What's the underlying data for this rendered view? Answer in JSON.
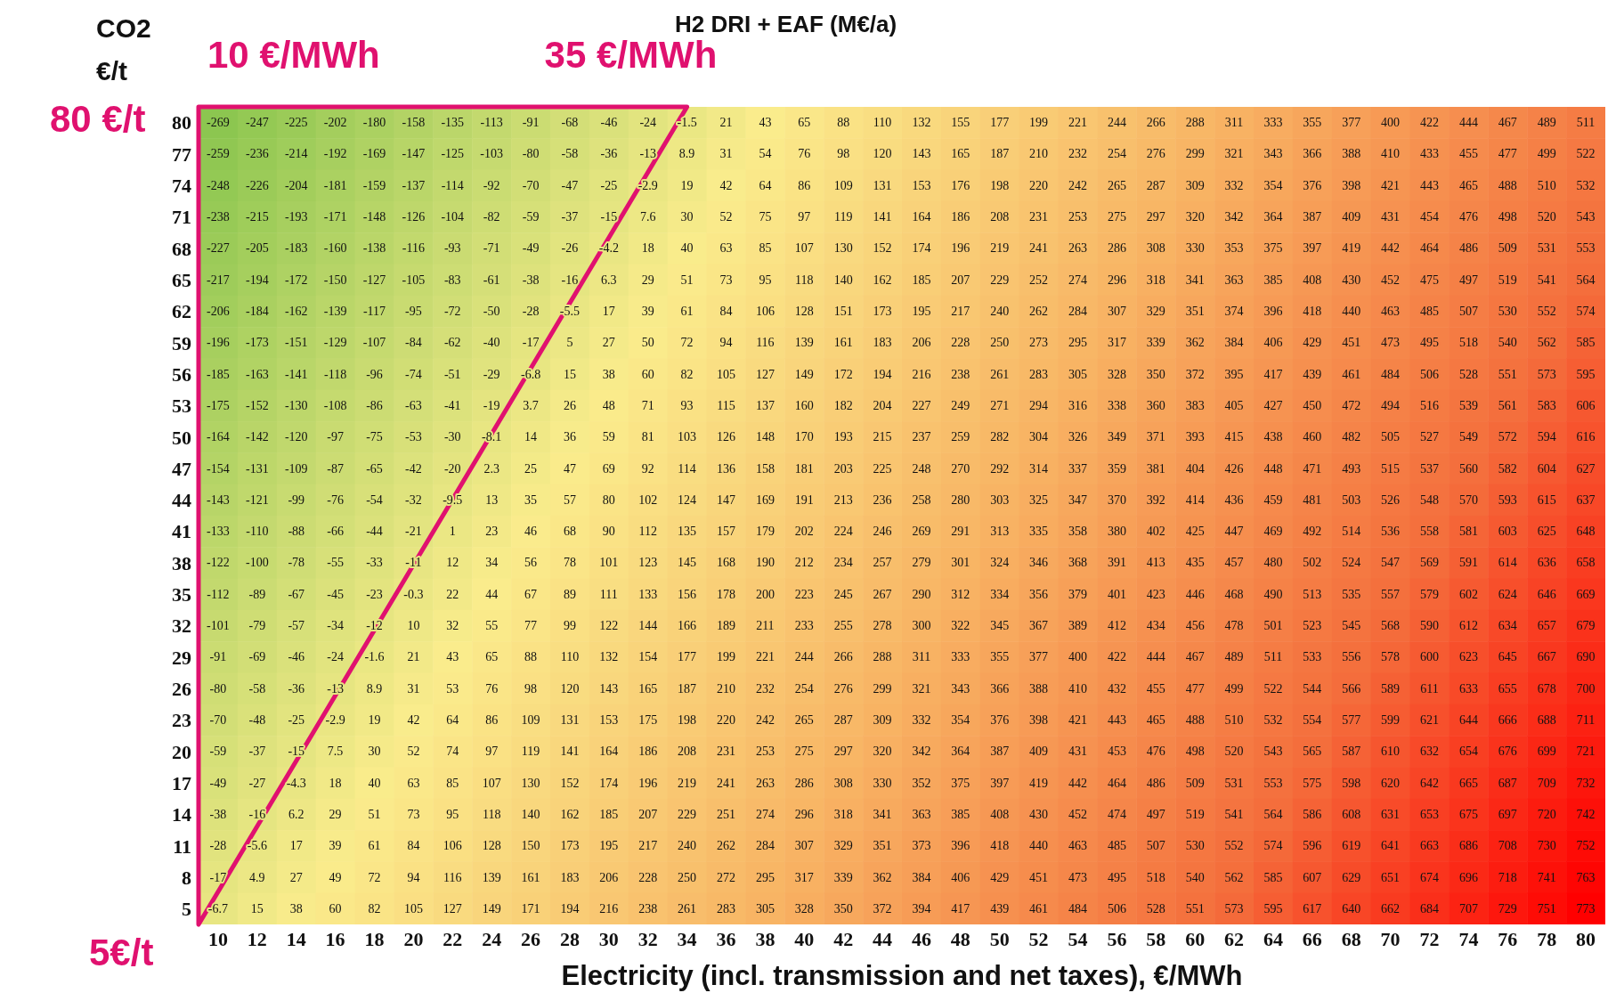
{
  "chart_data": {
    "type": "heatmap",
    "title": "H2 DRI + EAF  (M€/a)",
    "xlabel": "Electricity (incl. transmission and net taxes), €/MWh",
    "ylabel": "CO2 €/t",
    "annotations": [
      "10 €/MWh",
      "35 €/MWh",
      "80 €/t",
      "5€/t"
    ],
    "data_labels": true,
    "categories": [
      "10",
      "12",
      "14",
      "16",
      "18",
      "20",
      "22",
      "24",
      "26",
      "28",
      "30",
      "32",
      "34",
      "36",
      "38",
      "40",
      "42",
      "44",
      "46",
      "48",
      "50",
      "52",
      "54",
      "56",
      "58",
      "60",
      "62",
      "64",
      "66",
      "68",
      "70",
      "72",
      "74",
      "76",
      "78",
      "80"
    ],
    "y_categories": [
      "80",
      "77",
      "74",
      "71",
      "68",
      "65",
      "62",
      "59",
      "56",
      "53",
      "50",
      "47",
      "44",
      "41",
      "38",
      "35",
      "32",
      "29",
      "26",
      "23",
      "20",
      "17",
      "14",
      "11",
      "8",
      "5"
    ],
    "cells": [
      [
        -269,
        -247,
        -225,
        -202,
        -180,
        -158,
        -135,
        -113,
        -91,
        -68,
        -46,
        -24,
        -1.5,
        21,
        43,
        65,
        88,
        110,
        132,
        155,
        177,
        199,
        221,
        244,
        266,
        288,
        311,
        333,
        355,
        377,
        400,
        422,
        444,
        467,
        489,
        511
      ],
      [
        -259,
        -236,
        -214,
        -192,
        -169,
        -147,
        -125,
        -103,
        -80,
        -58,
        -36,
        -13,
        8.9,
        31,
        54,
        76,
        98,
        120,
        143,
        165,
        187,
        210,
        232,
        254,
        276,
        299,
        321,
        343,
        366,
        388,
        410,
        433,
        455,
        477,
        499,
        522
      ],
      [
        -248,
        -226,
        -204,
        -181,
        -159,
        -137,
        -114,
        -92,
        -70,
        -47,
        -25,
        -2.9,
        19,
        42,
        64,
        86,
        109,
        131,
        153,
        176,
        198,
        220,
        242,
        265,
        287,
        309,
        332,
        354,
        376,
        398,
        421,
        443,
        465,
        488,
        510,
        532
      ],
      [
        -238,
        -215,
        -193,
        -171,
        -148,
        -126,
        -104,
        -82,
        -59,
        -37,
        -15,
        7.6,
        30,
        52,
        75,
        97,
        119,
        141,
        164,
        186,
        208,
        231,
        253,
        275,
        297,
        320,
        342,
        364,
        387,
        409,
        431,
        454,
        476,
        498,
        520,
        543
      ],
      [
        -227,
        -205,
        -183,
        -160,
        -138,
        -116,
        -93,
        -71,
        -49,
        -26,
        -4.2,
        18,
        40,
        63,
        85,
        107,
        130,
        152,
        174,
        196,
        219,
        241,
        263,
        286,
        308,
        330,
        353,
        375,
        397,
        419,
        442,
        464,
        486,
        509,
        531,
        553
      ],
      [
        -217,
        -194,
        -172,
        -150,
        -127,
        -105,
        -83,
        -61,
        -38,
        -16,
        6.3,
        29,
        51,
        73,
        95,
        118,
        140,
        162,
        185,
        207,
        229,
        252,
        274,
        296,
        318,
        341,
        363,
        385,
        408,
        430,
        452,
        475,
        497,
        519,
        541,
        564
      ],
      [
        -206,
        -184,
        -162,
        -139,
        -117,
        -95,
        -72,
        -50,
        -28,
        -5.5,
        17,
        39,
        61,
        84,
        106,
        128,
        151,
        173,
        195,
        217,
        240,
        262,
        284,
        307,
        329,
        351,
        374,
        396,
        418,
        440,
        463,
        485,
        507,
        530,
        552,
        574
      ],
      [
        -196,
        -173,
        -151,
        -129,
        -107,
        -84,
        -62,
        -40,
        -17,
        5,
        27,
        50,
        72,
        94,
        116,
        139,
        161,
        183,
        206,
        228,
        250,
        273,
        295,
        317,
        339,
        362,
        384,
        406,
        429,
        451,
        473,
        495,
        518,
        540,
        562,
        585
      ],
      [
        -185,
        -163,
        -141,
        -118,
        -96,
        -74,
        -51,
        -29,
        -6.8,
        15,
        38,
        60,
        82,
        105,
        127,
        149,
        172,
        194,
        216,
        238,
        261,
        283,
        305,
        328,
        350,
        372,
        395,
        417,
        439,
        461,
        484,
        506,
        528,
        551,
        573,
        595
      ],
      [
        -175,
        -152,
        -130,
        -108,
        -86,
        -63,
        -41,
        -19,
        3.7,
        26,
        48,
        71,
        93,
        115,
        137,
        160,
        182,
        204,
        227,
        249,
        271,
        294,
        316,
        338,
        360,
        383,
        405,
        427,
        450,
        472,
        494,
        516,
        539,
        561,
        583,
        606
      ],
      [
        -164,
        -142,
        -120,
        -97,
        -75,
        -53,
        -30,
        -8.1,
        14,
        36,
        59,
        81,
        103,
        126,
        148,
        170,
        193,
        215,
        237,
        259,
        282,
        304,
        326,
        349,
        371,
        393,
        415,
        438,
        460,
        482,
        505,
        527,
        549,
        572,
        594,
        616
      ],
      [
        -154,
        -131,
        -109,
        -87,
        -65,
        -42,
        -20,
        2.3,
        25,
        47,
        69,
        92,
        114,
        136,
        158,
        181,
        203,
        225,
        248,
        270,
        292,
        314,
        337,
        359,
        381,
        404,
        426,
        448,
        471,
        493,
        515,
        537,
        560,
        582,
        604,
        627
      ],
      [
        -143,
        -121,
        -99,
        -76,
        -54,
        -32,
        -9.5,
        13,
        35,
        57,
        80,
        102,
        124,
        147,
        169,
        191,
        213,
        236,
        258,
        280,
        303,
        325,
        347,
        370,
        392,
        414,
        436,
        459,
        481,
        503,
        526,
        548,
        570,
        593,
        615,
        637
      ],
      [
        -133,
        -110,
        -88,
        -66,
        -44,
        -21,
        1,
        23,
        46,
        68,
        90,
        112,
        135,
        157,
        179,
        202,
        224,
        246,
        269,
        291,
        313,
        335,
        358,
        380,
        402,
        425,
        447,
        469,
        492,
        514,
        536,
        558,
        581,
        603,
        625,
        648
      ],
      [
        -122,
        -100,
        -78,
        -55,
        -33,
        -11,
        12,
        34,
        56,
        78,
        101,
        123,
        145,
        168,
        190,
        212,
        234,
        257,
        279,
        301,
        324,
        346,
        368,
        391,
        413,
        435,
        457,
        480,
        502,
        524,
        547,
        569,
        591,
        614,
        636,
        658
      ],
      [
        -112,
        -89,
        -67,
        -45,
        -23,
        -0.3,
        22,
        44,
        67,
        89,
        111,
        133,
        156,
        178,
        200,
        223,
        245,
        267,
        290,
        312,
        334,
        356,
        379,
        401,
        423,
        446,
        468,
        490,
        513,
        535,
        557,
        579,
        602,
        624,
        646,
        669
      ],
      [
        -101,
        -79,
        -57,
        -34,
        -12,
        10,
        32,
        55,
        77,
        99,
        122,
        144,
        166,
        189,
        211,
        233,
        255,
        278,
        300,
        322,
        345,
        367,
        389,
        412,
        434,
        456,
        478,
        501,
        523,
        545,
        568,
        590,
        612,
        634,
        657,
        679
      ],
      [
        -91,
        -69,
        -46,
        -24,
        -1.6,
        21,
        43,
        65,
        88,
        110,
        132,
        154,
        177,
        199,
        221,
        244,
        266,
        288,
        311,
        333,
        355,
        377,
        400,
        422,
        444,
        467,
        489,
        511,
        533,
        556,
        578,
        600,
        623,
        645,
        667,
        690
      ],
      [
        -80,
        -58,
        -36,
        -13,
        8.9,
        31,
        53,
        76,
        98,
        120,
        143,
        165,
        187,
        210,
        232,
        254,
        276,
        299,
        321,
        343,
        366,
        388,
        410,
        432,
        455,
        477,
        499,
        522,
        544,
        566,
        589,
        611,
        633,
        655,
        678,
        700
      ],
      [
        -70,
        -48,
        -25,
        -2.9,
        19,
        42,
        64,
        86,
        109,
        131,
        153,
        175,
        198,
        220,
        242,
        265,
        287,
        309,
        332,
        354,
        376,
        398,
        421,
        443,
        465,
        488,
        510,
        532,
        554,
        577,
        599,
        621,
        644,
        666,
        688,
        711
      ],
      [
        -59,
        -37,
        -15,
        7.5,
        30,
        52,
        74,
        97,
        119,
        141,
        164,
        186,
        208,
        231,
        253,
        275,
        297,
        320,
        342,
        364,
        387,
        409,
        431,
        453,
        476,
        498,
        520,
        543,
        565,
        587,
        610,
        632,
        654,
        676,
        699,
        721
      ],
      [
        -49,
        -27,
        -4.3,
        18,
        40,
        63,
        85,
        107,
        130,
        152,
        174,
        196,
        219,
        241,
        263,
        286,
        308,
        330,
        352,
        375,
        397,
        419,
        442,
        464,
        486,
        509,
        531,
        553,
        575,
        598,
        620,
        642,
        665,
        687,
        709,
        732
      ],
      [
        -38,
        -16,
        6.2,
        29,
        51,
        73,
        95,
        118,
        140,
        162,
        185,
        207,
        229,
        251,
        274,
        296,
        318,
        341,
        363,
        385,
        408,
        430,
        452,
        474,
        497,
        519,
        541,
        564,
        586,
        608,
        631,
        653,
        675,
        697,
        720,
        742
      ],
      [
        -28,
        -5.6,
        17,
        39,
        61,
        84,
        106,
        128,
        150,
        173,
        195,
        217,
        240,
        262,
        284,
        307,
        329,
        351,
        373,
        396,
        418,
        440,
        463,
        485,
        507,
        530,
        552,
        574,
        596,
        619,
        641,
        663,
        686,
        708,
        730,
        752
      ],
      [
        -17,
        4.9,
        27,
        49,
        72,
        94,
        116,
        139,
        161,
        183,
        206,
        228,
        250,
        272,
        295,
        317,
        339,
        362,
        384,
        406,
        429,
        451,
        473,
        495,
        518,
        540,
        562,
        585,
        607,
        629,
        651,
        674,
        696,
        718,
        741,
        763
      ],
      [
        -6.7,
        15,
        38,
        60,
        82,
        105,
        127,
        149,
        171,
        194,
        216,
        238,
        261,
        283,
        305,
        328,
        350,
        372,
        394,
        417,
        439,
        461,
        484,
        506,
        528,
        551,
        573,
        595,
        617,
        640,
        662,
        684,
        707,
        729,
        751,
        773
      ]
    ]
  }
}
